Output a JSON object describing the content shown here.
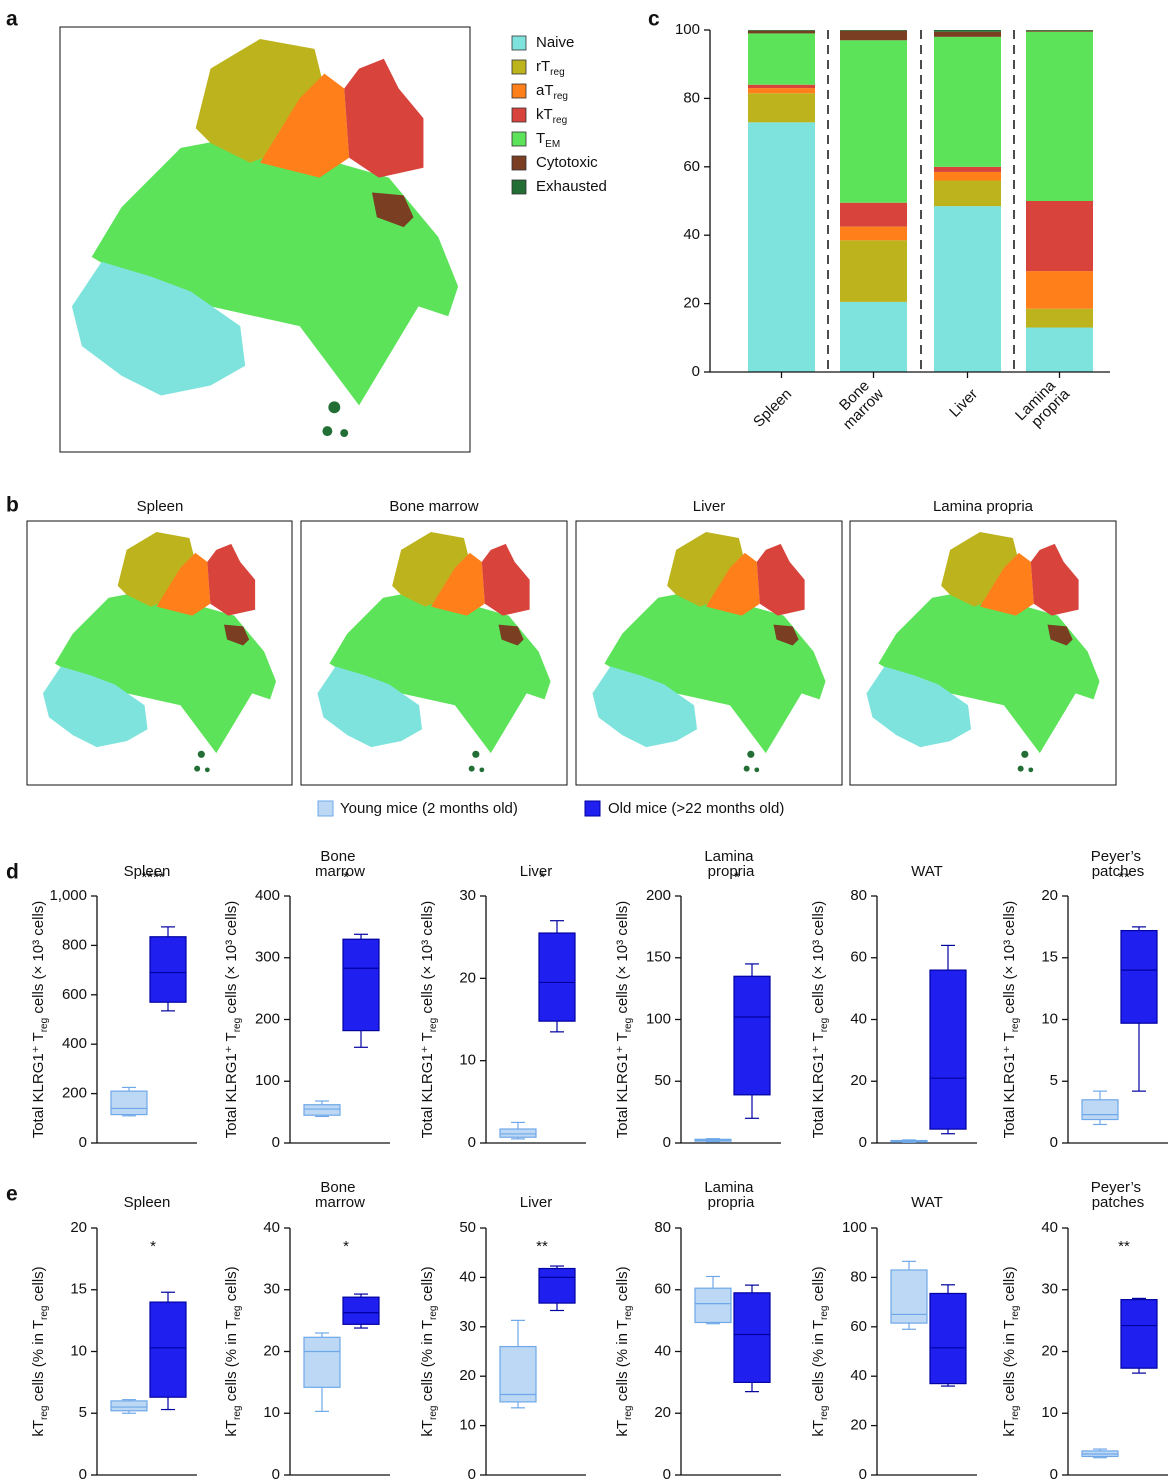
{
  "panel_labels": [
    "a",
    "b",
    "c",
    "d",
    "e"
  ],
  "umap": {
    "panels": [
      "Spleen",
      "Bone marrow",
      "Liver",
      "Lamina propria"
    ]
  },
  "chart_data": [
    {
      "type": "stacked-bar",
      "categories": [
        "Spleen",
        "Bone marrow",
        "Liver",
        "Lamina propria"
      ],
      "ylim": [
        0,
        100
      ],
      "yticks": [
        0,
        20,
        40,
        60,
        80,
        100
      ],
      "series": [
        {
          "name": [
            "Naive"
          ],
          "color": "#7ee3dc",
          "values": [
            73,
            20.5,
            48.5,
            13
          ]
        },
        {
          "name": [
            "rT",
            "reg"
          ],
          "color": "#bdb31c",
          "values": [
            8.5,
            18,
            7.5,
            5.5
          ]
        },
        {
          "name": [
            "aT",
            "reg"
          ],
          "color": "#ff7f1a",
          "values": [
            1.5,
            4,
            2.5,
            11
          ]
        },
        {
          "name": [
            "kT",
            "reg"
          ],
          "color": "#d8443c",
          "values": [
            1,
            7,
            1.5,
            20.5
          ]
        },
        {
          "name": [
            "T",
            "EM"
          ],
          "color": "#5ce35a",
          "values": [
            15,
            47.5,
            38,
            49.5
          ]
        },
        {
          "name": [
            "Cytotoxic"
          ],
          "color": "#7a3e22",
          "values": [
            0.8,
            2.8,
            1.5,
            0.3
          ]
        },
        {
          "name": [
            "Exhausted"
          ],
          "color": "#226e35",
          "values": [
            0.2,
            0.2,
            0.5,
            0.2
          ]
        }
      ]
    },
    {
      "type": "box",
      "title": "Spleen",
      "ylabel": [
        "Total KLRG1⁺ T",
        "reg",
        " cells (× 10³ cells)"
      ],
      "ylim": [
        0,
        1000
      ],
      "yticks": [
        0,
        200,
        400,
        600,
        800,
        {
          "value": 1000,
          "label": "1,000"
        }
      ],
      "significance": "****",
      "series": [
        {
          "name": "Young mice (2 months old)",
          "color": "#bcd8f5",
          "values": [
            110,
            115,
            140,
            210,
            225
          ]
        },
        {
          "name": "Old mice (>22 months old)",
          "color": "#1f1ff0",
          "values": [
            535,
            570,
            690,
            835,
            875
          ]
        }
      ]
    },
    {
      "type": "box",
      "title": "Bone marrow",
      "ylabel": [
        "Total KLRG1⁺ T",
        "reg",
        " cells (× 10³ cells)"
      ],
      "ylim": [
        0,
        400
      ],
      "yticks": [
        0,
        100,
        200,
        300,
        400
      ],
      "significance": "*",
      "series": [
        {
          "color": "#bcd8f5",
          "values": [
            43,
            45,
            55,
            62,
            68
          ]
        },
        {
          "color": "#1f1ff0",
          "values": [
            155,
            182,
            283,
            330,
            338
          ]
        }
      ]
    },
    {
      "type": "box",
      "title": "Liver",
      "ylabel": [
        "Total KLRG1⁺ T",
        "reg",
        " cells (× 10³ cells)"
      ],
      "ylim": [
        0,
        30
      ],
      "yticks": [
        0,
        10,
        20,
        30
      ],
      "significance": "*",
      "series": [
        {
          "color": "#bcd8f5",
          "values": [
            0.5,
            0.7,
            1.1,
            1.7,
            2.5
          ]
        },
        {
          "color": "#1f1ff0",
          "values": [
            13.5,
            14.8,
            19.5,
            25.5,
            27
          ]
        }
      ]
    },
    {
      "type": "box",
      "title": "Lamina propria",
      "ylabel": [
        "Total KLRG1⁺ T",
        "reg",
        " cells (× 10³ cells)"
      ],
      "ylim": [
        0,
        200
      ],
      "yticks": [
        0,
        50,
        100,
        150,
        200
      ],
      "significance": "*",
      "series": [
        {
          "color": "#bcd8f5",
          "values": [
            1,
            1.5,
            2.5,
            3,
            3.5
          ]
        },
        {
          "color": "#1f1ff0",
          "values": [
            20,
            39,
            102,
            135,
            145
          ]
        }
      ]
    },
    {
      "type": "box",
      "title": "WAT",
      "ylabel": [
        "Total KLRG1⁺ T",
        "reg",
        " cells (× 10³ cells)"
      ],
      "ylim": [
        0,
        80
      ],
      "yticks": [
        0,
        20,
        40,
        60,
        80
      ],
      "series": [
        {
          "color": "#bcd8f5",
          "values": [
            0.2,
            0.3,
            0.5,
            0.8,
            1
          ]
        },
        {
          "color": "#1f1ff0",
          "values": [
            3,
            4.5,
            21,
            56,
            64
          ]
        }
      ]
    },
    {
      "type": "box",
      "title": "Peyer’s patches",
      "ylabel": [
        "Total KLRG1⁺ T",
        "reg",
        " cells (× 10³ cells)"
      ],
      "ylim": [
        0,
        20
      ],
      "yticks": [
        0,
        5,
        10,
        15,
        20
      ],
      "significance": "**",
      "series": [
        {
          "color": "#bcd8f5",
          "values": [
            1.5,
            1.9,
            2.3,
            3.5,
            4.2
          ]
        },
        {
          "color": "#1f1ff0",
          "values": [
            4.2,
            9.7,
            14,
            17.2,
            17.5
          ]
        }
      ]
    },
    {
      "type": "box",
      "title": "Spleen",
      "ylabel": [
        "kT",
        "reg",
        " cells (% in T",
        "reg",
        " cells)"
      ],
      "ylim": [
        0,
        20
      ],
      "yticks": [
        0,
        5,
        10,
        15,
        20
      ],
      "significance": "*",
      "series": [
        {
          "color": "#bcd8f5",
          "values": [
            5,
            5.2,
            5.5,
            6,
            6.1
          ]
        },
        {
          "color": "#1f1ff0",
          "values": [
            5.3,
            6.3,
            10.3,
            14,
            14.8
          ]
        }
      ]
    },
    {
      "type": "box",
      "title": "Bone marrow",
      "ylabel": [
        "kT",
        "reg",
        " cells (% in T",
        "reg",
        " cells)"
      ],
      "ylim": [
        0,
        40
      ],
      "yticks": [
        0,
        10,
        20,
        30,
        40
      ],
      "significance": "*",
      "series": [
        {
          "color": "#bcd8f5",
          "values": [
            10.3,
            14.2,
            20,
            22.3,
            23
          ]
        },
        {
          "color": "#1f1ff0",
          "values": [
            23.8,
            24.4,
            26.3,
            28.8,
            29.3
          ]
        }
      ]
    },
    {
      "type": "box",
      "title": "Liver",
      "ylabel": [
        "kT",
        "reg",
        " cells (% in T",
        "reg",
        " cells)"
      ],
      "ylim": [
        0,
        50
      ],
      "yticks": [
        0,
        10,
        20,
        30,
        40,
        50
      ],
      "significance": "**",
      "series": [
        {
          "color": "#bcd8f5",
          "values": [
            13.6,
            14.8,
            16.3,
            26,
            31.3
          ]
        },
        {
          "color": "#1f1ff0",
          "values": [
            33.3,
            34.8,
            40,
            41.8,
            42.3
          ]
        }
      ]
    },
    {
      "type": "box",
      "title": "Lamina propria",
      "ylabel": [
        "kT",
        "reg",
        " cells (% in T",
        "reg",
        " cells)"
      ],
      "ylim": [
        0,
        80
      ],
      "yticks": [
        0,
        20,
        40,
        60,
        80
      ],
      "series": [
        {
          "color": "#bcd8f5",
          "values": [
            49,
            49.4,
            55.5,
            60.5,
            64.3
          ]
        },
        {
          "color": "#1f1ff0",
          "values": [
            27,
            30,
            45.5,
            59,
            61.5
          ]
        }
      ]
    },
    {
      "type": "box",
      "title": "WAT",
      "ylabel": [
        "kT",
        "reg",
        " cells (% in T",
        "reg",
        " cells)"
      ],
      "ylim": [
        0,
        100
      ],
      "yticks": [
        0,
        20,
        40,
        60,
        80,
        100
      ],
      "series": [
        {
          "color": "#bcd8f5",
          "values": [
            59,
            61.5,
            65,
            83,
            86.5
          ]
        },
        {
          "color": "#1f1ff0",
          "values": [
            36,
            37,
            51.5,
            73.5,
            77
          ]
        }
      ]
    },
    {
      "type": "box",
      "title": "Peyer’s patches",
      "ylabel": [
        "kT",
        "reg",
        " cells (% in T",
        "reg",
        " cells)"
      ],
      "ylim": [
        0,
        40
      ],
      "yticks": [
        0,
        10,
        20,
        30,
        40
      ],
      "significance": "**",
      "series": [
        {
          "color": "#bcd8f5",
          "values": [
            2.8,
            3,
            3.4,
            3.9,
            4.2
          ]
        },
        {
          "color": "#1f1ff0",
          "values": [
            16.5,
            17.3,
            24.2,
            28.4,
            28.6
          ]
        }
      ]
    }
  ]
}
